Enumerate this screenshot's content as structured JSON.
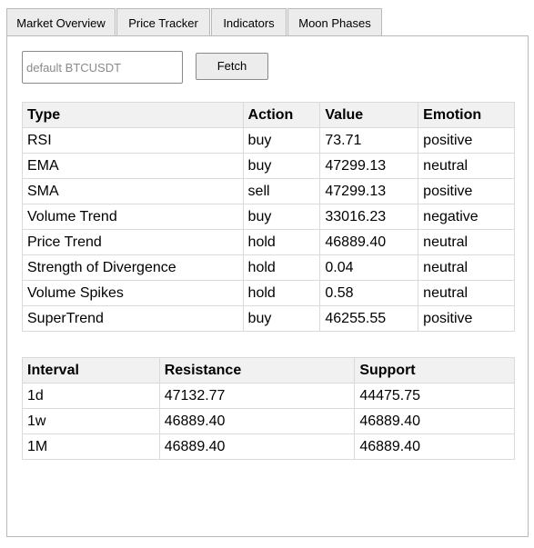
{
  "tabs": [
    {
      "label": "Market Overview"
    },
    {
      "label": "Price Tracker"
    },
    {
      "label": "Indicators"
    },
    {
      "label": "Moon Phases"
    }
  ],
  "search": {
    "placeholder": "default BTCUSDT",
    "value": "",
    "fetch_label": "Fetch"
  },
  "indicators": {
    "headers": [
      "Type",
      "Action",
      "Value",
      "Emotion"
    ],
    "rows": [
      [
        "RSI",
        "buy",
        "73.71",
        "positive"
      ],
      [
        "EMA",
        "buy",
        "47299.13",
        "neutral"
      ],
      [
        "SMA",
        "sell",
        "47299.13",
        "positive"
      ],
      [
        "Volume Trend",
        "buy",
        "33016.23",
        "negative"
      ],
      [
        "Price Trend",
        "hold",
        "46889.40",
        "neutral"
      ],
      [
        "Strength of Divergence",
        "hold",
        "0.04",
        "neutral"
      ],
      [
        "Volume Spikes",
        "hold",
        "0.58",
        "neutral"
      ],
      [
        "SuperTrend",
        "buy",
        "46255.55",
        "positive"
      ]
    ]
  },
  "levels": {
    "headers": [
      "Interval",
      "Resistance",
      "Support"
    ],
    "rows": [
      [
        "1d",
        "47132.77",
        "44475.75"
      ],
      [
        "1w",
        "46889.40",
        "46889.40"
      ],
      [
        "1M",
        "46889.40",
        "46889.40"
      ]
    ]
  }
}
